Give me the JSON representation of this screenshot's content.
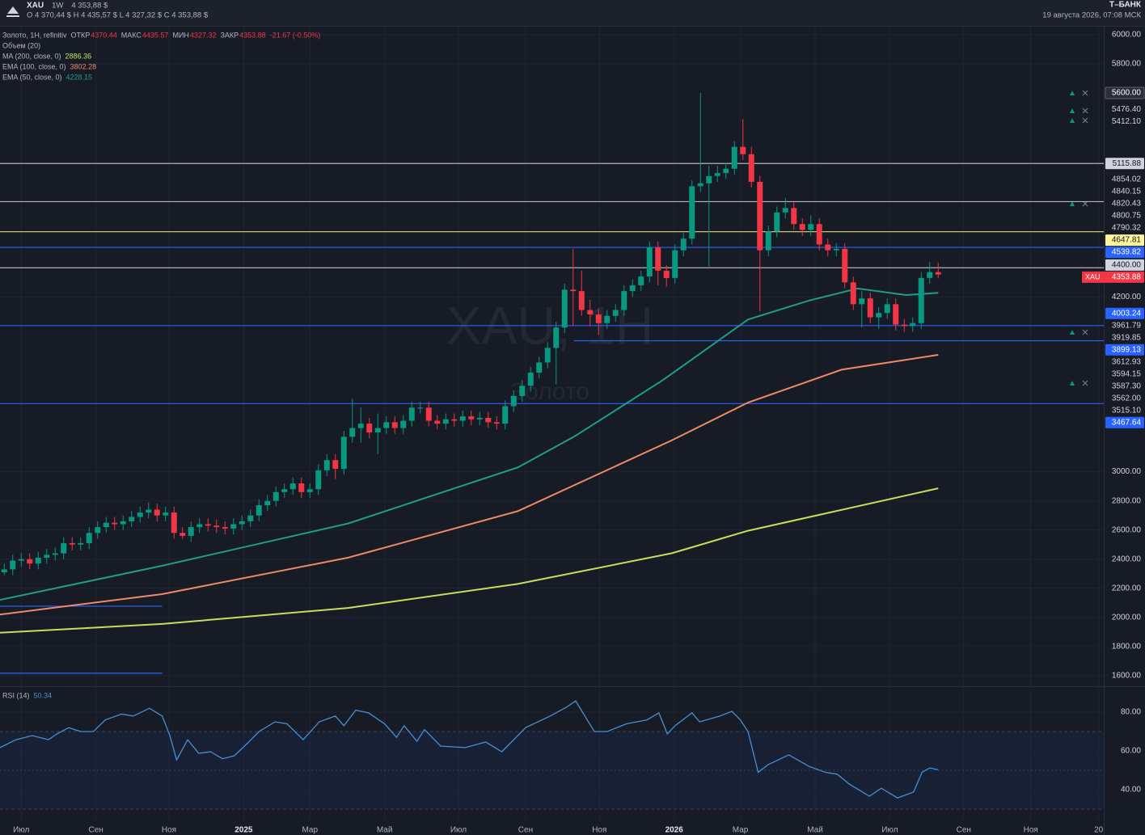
{
  "header": {
    "symbol": "XAU",
    "interval": "1W",
    "price": "4 353,88 $",
    "ohlc": "O 4 370,44 $  H 4 435,57 $  L 4 327,32 $  C 4 353,88 $",
    "brand": "Т–БАНК",
    "datetime": "19 августа 2026, 07:08 МСК"
  },
  "chart_data": [
    {
      "type": "candlestick",
      "legend_title": "Золото, 1H, refinitiv",
      "ohlc_labels": [
        "ОТКР",
        "МАКС",
        "МИН",
        "ЗАКР"
      ],
      "change": "-21.67 (-0.50%)",
      "volume_label": "Объем (20)",
      "watermark": "XAU, 1H",
      "watermark_sub": "Золото",
      "last_label": "XAU",
      "up_color": "#089981",
      "down_color": "#f23645",
      "xlim": [
        -0.5,
        129.5
      ],
      "ylim": [
        1533,
        6055
      ],
      "yticks": [
        {
          "value": 6000,
          "label": "6000.00"
        },
        {
          "value": 5800,
          "label": "5800.00"
        },
        {
          "value": 4200,
          "label": "4200.00"
        },
        {
          "value": 3000,
          "label": "3000.00"
        },
        {
          "value": 2800,
          "label": "2800.00"
        },
        {
          "value": 2600,
          "label": "2600.00"
        },
        {
          "value": 2400,
          "label": "2400.00"
        },
        {
          "value": 2200,
          "label": "2200.00"
        },
        {
          "value": 2000,
          "label": "2000.00"
        },
        {
          "value": 1800,
          "label": "1800.00"
        },
        {
          "value": 1600,
          "label": "1600.00"
        }
      ],
      "grid": true,
      "ohlc": [
        [
          2310,
          2370,
          2290,
          2330
        ],
        [
          2330,
          2430,
          2290,
          2390
        ],
        [
          2390,
          2440,
          2350,
          2400
        ],
        [
          2400,
          2440,
          2330,
          2370
        ],
        [
          2370,
          2450,
          2330,
          2410
        ],
        [
          2410,
          2470,
          2370,
          2430
        ],
        [
          2430,
          2480,
          2390,
          2440
        ],
        [
          2440,
          2550,
          2400,
          2510
        ],
        [
          2510,
          2550,
          2460,
          2500
        ],
        [
          2500,
          2550,
          2460,
          2510
        ],
        [
          2510,
          2620,
          2470,
          2580
        ],
        [
          2580,
          2660,
          2540,
          2620
        ],
        [
          2620,
          2690,
          2580,
          2650
        ],
        [
          2650,
          2690,
          2600,
          2640
        ],
        [
          2640,
          2700,
          2600,
          2660
        ],
        [
          2660,
          2730,
          2620,
          2690
        ],
        [
          2690,
          2760,
          2650,
          2720
        ],
        [
          2720,
          2790,
          2680,
          2740
        ],
        [
          2740,
          2780,
          2660,
          2700
        ],
        [
          2700,
          2760,
          2660,
          2720
        ],
        [
          2720,
          2760,
          2540,
          2580
        ],
        [
          2580,
          2620,
          2540,
          2560
        ],
        [
          2560,
          2660,
          2520,
          2620
        ],
        [
          2620,
          2680,
          2580,
          2640
        ],
        [
          2640,
          2680,
          2590,
          2630
        ],
        [
          2630,
          2670,
          2580,
          2620
        ],
        [
          2620,
          2660,
          2570,
          2610
        ],
        [
          2610,
          2680,
          2570,
          2640
        ],
        [
          2640,
          2700,
          2600,
          2660
        ],
        [
          2660,
          2740,
          2620,
          2700
        ],
        [
          2700,
          2810,
          2660,
          2770
        ],
        [
          2770,
          2840,
          2730,
          2800
        ],
        [
          2800,
          2900,
          2760,
          2860
        ],
        [
          2860,
          2920,
          2820,
          2880
        ],
        [
          2880,
          2960,
          2840,
          2920
        ],
        [
          2920,
          2960,
          2820,
          2860
        ],
        [
          2860,
          2920,
          2820,
          2880
        ],
        [
          2880,
          3050,
          2840,
          3010
        ],
        [
          3010,
          3120,
          2970,
          3080
        ],
        [
          3080,
          3120,
          2950,
          3020
        ],
        [
          3020,
          3280,
          2980,
          3240
        ],
        [
          3240,
          3500,
          3200,
          3300
        ],
        [
          3300,
          3440,
          3200,
          3330
        ],
        [
          3330,
          3370,
          3230,
          3270
        ],
        [
          3270,
          3400,
          3120,
          3300
        ],
        [
          3300,
          3380,
          3260,
          3340
        ],
        [
          3340,
          3380,
          3260,
          3300
        ],
        [
          3300,
          3390,
          3260,
          3350
        ],
        [
          3350,
          3480,
          3310,
          3440
        ],
        [
          3440,
          3480,
          3400,
          3440
        ],
        [
          3440,
          3480,
          3310,
          3350
        ],
        [
          3350,
          3390,
          3290,
          3330
        ],
        [
          3330,
          3400,
          3290,
          3360
        ],
        [
          3360,
          3400,
          3310,
          3350
        ],
        [
          3350,
          3420,
          3310,
          3380
        ],
        [
          3380,
          3420,
          3320,
          3360
        ],
        [
          3360,
          3410,
          3320,
          3370
        ],
        [
          3370,
          3410,
          3300,
          3340
        ],
        [
          3340,
          3380,
          3290,
          3330
        ],
        [
          3330,
          3490,
          3290,
          3450
        ],
        [
          3450,
          3560,
          3410,
          3520
        ],
        [
          3520,
          3630,
          3480,
          3590
        ],
        [
          3590,
          3720,
          3550,
          3680
        ],
        [
          3680,
          3790,
          3640,
          3750
        ],
        [
          3750,
          3890,
          3710,
          3850
        ],
        [
          3850,
          4030,
          3600,
          3990
        ],
        [
          3990,
          4290,
          3950,
          4250
        ],
        [
          4250,
          4530,
          4000,
          4240
        ],
        [
          4240,
          4380,
          4070,
          4110
        ],
        [
          4110,
          4180,
          4000,
          4080
        ],
        [
          4080,
          4120,
          3940,
          4020
        ],
        [
          4020,
          4110,
          3980,
          4070
        ],
        [
          4070,
          4150,
          4030,
          4110
        ],
        [
          4110,
          4280,
          4070,
          4240
        ],
        [
          4240,
          4320,
          4200,
          4280
        ],
        [
          4280,
          4380,
          4240,
          4340
        ],
        [
          4340,
          4580,
          4300,
          4540
        ],
        [
          4540,
          4580,
          4280,
          4380
        ],
        [
          4380,
          4420,
          4270,
          4330
        ],
        [
          4330,
          4560,
          4290,
          4520
        ],
        [
          4520,
          4640,
          4480,
          4600
        ],
        [
          4600,
          5000,
          4560,
          4960
        ],
        [
          4960,
          5600,
          4920,
          4980
        ],
        [
          4980,
          5100,
          4410,
          5030
        ],
        [
          5030,
          5100,
          4990,
          5050
        ],
        [
          5050,
          5120,
          5010,
          5080
        ],
        [
          5080,
          5270,
          5040,
          5230
        ],
        [
          5230,
          5420,
          5140,
          5180
        ],
        [
          5180,
          5230,
          4950,
          4990
        ],
        [
          4990,
          5030,
          4100,
          4520
        ],
        [
          4520,
          4690,
          4480,
          4650
        ],
        [
          4650,
          4820,
          4610,
          4780
        ],
        [
          4780,
          4880,
          4740,
          4810
        ],
        [
          4810,
          4850,
          4660,
          4700
        ],
        [
          4700,
          4740,
          4620,
          4660
        ],
        [
          4660,
          4760,
          4620,
          4700
        ],
        [
          4700,
          4740,
          4520,
          4560
        ],
        [
          4560,
          4600,
          4480,
          4520
        ],
        [
          4520,
          4570,
          4480,
          4530
        ],
        [
          4530,
          4570,
          4260,
          4300
        ],
        [
          4300,
          4340,
          4110,
          4150
        ],
        [
          4150,
          4240,
          3990,
          4190
        ],
        [
          4190,
          4230,
          4020,
          4060
        ],
        [
          4060,
          4130,
          3980,
          4090
        ],
        [
          4090,
          4190,
          4050,
          4150
        ],
        [
          4150,
          4190,
          3970,
          4010
        ],
        [
          4010,
          4050,
          3960,
          4000
        ],
        [
          4000,
          4060,
          3960,
          4020
        ],
        [
          4020,
          4370,
          3980,
          4330
        ],
        [
          4330,
          4440,
          4290,
          4370
        ],
        [
          4370.44,
          4435.57,
          4327.32,
          4353.88
        ]
      ],
      "lines": [
        {
          "name": "MA (200, close, 0)",
          "color": "#c6e05a",
          "x": [
            -0.5,
            18.6,
            40.5,
            60.5,
            78.6,
            87.6,
            110
          ],
          "values": [
            1895,
            1955,
            2065,
            2230,
            2440,
            2595,
            2886.36
          ]
        },
        {
          "name": "EMA (100, close, 0)",
          "color": "#f08a66",
          "x": [
            -0.5,
            18.6,
            40.5,
            60.5,
            78.6,
            87.6,
            98.6,
            110
          ],
          "values": [
            2020,
            2160,
            2410,
            2730,
            3215,
            3475,
            3700,
            3802.28
          ]
        },
        {
          "name": "EMA (50, close, 0)",
          "color": "#1f9c8a",
          "x": [
            -0.5,
            18.6,
            40.5,
            60.5,
            67.1,
            77.6,
            87.6,
            94.8,
            100.5,
            106.2,
            110
          ],
          "values": [
            2120,
            2355,
            2645,
            3030,
            3240,
            3630,
            4045,
            4175,
            4258,
            4213,
            4228.15
          ]
        }
      ],
      "price_labels": [
        {
          "value": 5600,
          "label": "5600.00",
          "color": "#2a2e39"
        },
        {
          "value": 5476.4,
          "label": "5476.40"
        },
        {
          "value": 5412.1,
          "label": "5412.10"
        },
        {
          "value": 5115.88,
          "label": "5115.88",
          "color": "#d1d4dc",
          "line_color": "#b2b5be"
        },
        {
          "value": 4854.02,
          "label": "4854.02",
          "line_color": "#b2b5be"
        },
        {
          "value": 4840.15,
          "label": "4840.15"
        },
        {
          "value": 4820.43,
          "label": "4820.43"
        },
        {
          "value": 4800.75,
          "label": "4800.75"
        },
        {
          "value": 4790.32,
          "label": "4790.32"
        },
        {
          "value": 4647.81,
          "label": "4647.81",
          "color": "#fff59d",
          "line_color": "#c9c27a"
        },
        {
          "value": 4539.82,
          "label": "4539.82",
          "color": "#2962ff",
          "line_color": "#2962ff"
        },
        {
          "value": 4400,
          "label": "4400.00",
          "color": "#d1d4dc",
          "line_color": "#b2b5be"
        },
        {
          "value": 4003.24,
          "label": "4003.24",
          "color": "#2962ff",
          "line_color": "#2962ff"
        },
        {
          "value": 3961.79,
          "label": "3961.79"
        },
        {
          "value": 3919.85,
          "label": "3919.85"
        },
        {
          "value": 3899.13,
          "label": "3899.13",
          "color": "#2962ff",
          "line_color": "#2962ff",
          "x0": 67.1
        },
        {
          "value": 3612.93,
          "label": "3612.93"
        },
        {
          "value": 3594.15,
          "label": "3594.15"
        },
        {
          "value": 3587.3,
          "label": "3587.30"
        },
        {
          "value": 3562,
          "label": "3562.00"
        },
        {
          "value": 3515.1,
          "label": "3515.10"
        },
        {
          "value": 3467.64,
          "label": "3467.64",
          "color": "#2962ff",
          "line_color": "#2962ff"
        }
      ],
      "levels": [
        {
          "value": 2077,
          "xrange": [
            -0.5,
            18.6
          ],
          "color": "#2962ff"
        },
        {
          "value": 1617,
          "xrange": [
            -0.5,
            18.6
          ],
          "color": "#2962ff"
        }
      ]
    },
    {
      "type": "line",
      "title": "RSI (14)",
      "color": "#4a8fd0",
      "xlim": [
        -0.5,
        129.5
      ],
      "ylim": [
        24.2,
        92.9
      ],
      "yticks": [
        {
          "value": 80,
          "label": "80.00"
        },
        {
          "value": 60,
          "label": "60.00"
        },
        {
          "value": 40,
          "label": "40.00"
        }
      ],
      "band": [
        30,
        70
      ],
      "midline": 50,
      "xticks": [
        {
          "value": 2,
          "label": "Июл"
        },
        {
          "value": 10.8,
          "label": "Сен"
        },
        {
          "value": 19.4,
          "label": "Ноя"
        },
        {
          "value": 28.2,
          "label": "2025"
        },
        {
          "value": 36,
          "label": "Мар"
        },
        {
          "value": 44.8,
          "label": "Май"
        },
        {
          "value": 53.5,
          "label": "Июл"
        },
        {
          "value": 61.4,
          "label": "Сен"
        },
        {
          "value": 70.1,
          "label": "Ноя"
        },
        {
          "value": 78.9,
          "label": "2026"
        },
        {
          "value": 86.7,
          "label": "Мар"
        },
        {
          "value": 95.5,
          "label": "Май"
        },
        {
          "value": 104.3,
          "label": "Июл"
        },
        {
          "value": 113,
          "label": "Сен"
        },
        {
          "value": 120.9,
          "label": "Ноя"
        },
        {
          "value": 128.9,
          "label": "20"
        }
      ],
      "x": [
        -0.5,
        1.4,
        3.3,
        5.2,
        6.2,
        7.6,
        9,
        10.5,
        11.9,
        13.8,
        15.2,
        17.1,
        18.6,
        19.5,
        20.3,
        21.6,
        22.9,
        24.3,
        25.7,
        27.1,
        28.6,
        30,
        31.9,
        33.3,
        35.2,
        37.1,
        39,
        40,
        41.4,
        42.9,
        44.8,
        46.2,
        47.1,
        48.6,
        49.5,
        51.4,
        54.3,
        56.7,
        58.6,
        61.4,
        64.3,
        66.2,
        67.3,
        69.5,
        71,
        73.3,
        75.7,
        77.1,
        78.1,
        79,
        81,
        81.9,
        84.3,
        85.7,
        86.7,
        87.6,
        88.8,
        90,
        92.4,
        94.8,
        96.7,
        98.1,
        99.5,
        101.9,
        103.3,
        105.2,
        107.1,
        108.1,
        109,
        110
      ],
      "values": [
        61.7,
        65.8,
        67.9,
        65.8,
        68.8,
        72,
        70,
        70,
        76,
        79,
        78,
        82,
        78,
        68,
        55.4,
        65.8,
        58.8,
        59.6,
        56,
        57.5,
        63.8,
        70,
        75,
        74,
        65.8,
        75,
        78,
        73,
        81,
        79.6,
        74,
        67,
        73,
        65,
        71,
        62.5,
        61.7,
        64.6,
        59.6,
        72,
        78,
        82.5,
        85.8,
        70,
        70,
        74,
        76,
        79.6,
        68.8,
        73,
        79.6,
        75,
        78,
        80.4,
        76,
        70,
        49,
        53,
        58,
        52,
        49,
        48,
        43,
        36.7,
        40.8,
        35.8,
        38.8,
        49,
        51.25,
        50.34
      ]
    }
  ]
}
